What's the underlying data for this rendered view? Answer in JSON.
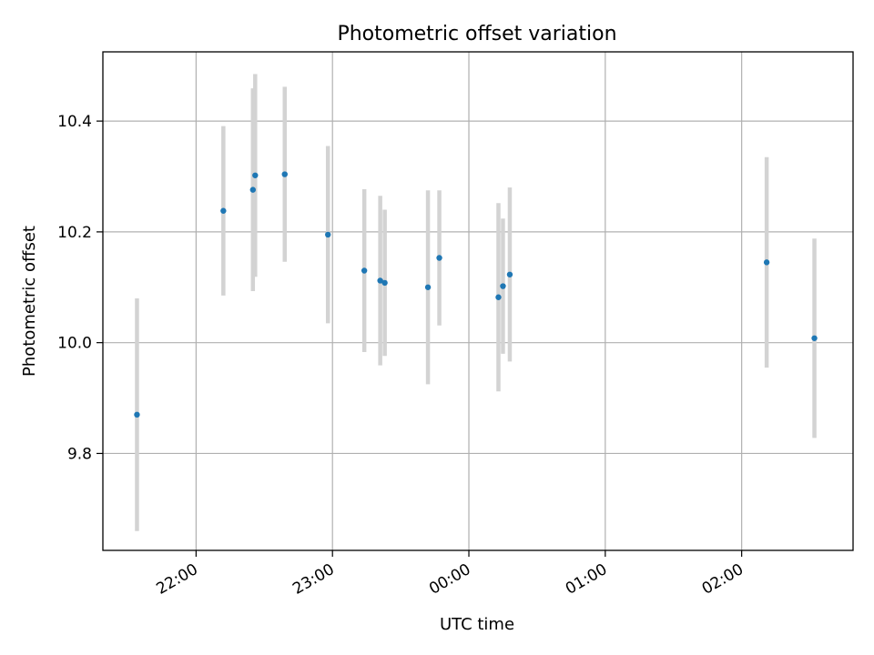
{
  "chart_data": {
    "type": "scatter",
    "title": "Photometric offset variation",
    "xlabel": "UTC time",
    "ylabel": "Photometric offset",
    "x_ticks": [
      "22:00",
      "23:00",
      "00:00",
      "01:00",
      "02:00"
    ],
    "y_ticks": [
      "9.8",
      "10.0",
      "10.2",
      "10.4"
    ],
    "x_range": [
      "21:19",
      "02:49"
    ],
    "y_range": [
      9.625,
      10.525
    ],
    "grid": true,
    "point_color": "#1f77b4",
    "errorbar_color": "#d3d3d3",
    "points": [
      {
        "x": "21:34",
        "y": 9.87,
        "err": 0.21
      },
      {
        "x": "22:12",
        "y": 10.238,
        "err": 0.153
      },
      {
        "x": "22:25",
        "y": 10.276,
        "err": 0.183
      },
      {
        "x": "22:26",
        "y": 10.302,
        "err": 0.183
      },
      {
        "x": "22:39",
        "y": 10.304,
        "err": 0.158
      },
      {
        "x": "22:58",
        "y": 10.195,
        "err": 0.16
      },
      {
        "x": "23:14",
        "y": 10.13,
        "err": 0.147
      },
      {
        "x": "23:21",
        "y": 10.112,
        "err": 0.153
      },
      {
        "x": "23:23",
        "y": 10.108,
        "err": 0.132
      },
      {
        "x": "23:42",
        "y": 10.1,
        "err": 0.175
      },
      {
        "x": "23:47",
        "y": 10.153,
        "err": 0.122
      },
      {
        "x": "00:13",
        "y": 10.082,
        "err": 0.17
      },
      {
        "x": "00:15",
        "y": 10.102,
        "err": 0.122
      },
      {
        "x": "00:18",
        "y": 10.123,
        "err": 0.157
      },
      {
        "x": "02:11",
        "y": 10.145,
        "err": 0.19
      },
      {
        "x": "02:32",
        "y": 10.008,
        "err": 0.18
      }
    ]
  }
}
